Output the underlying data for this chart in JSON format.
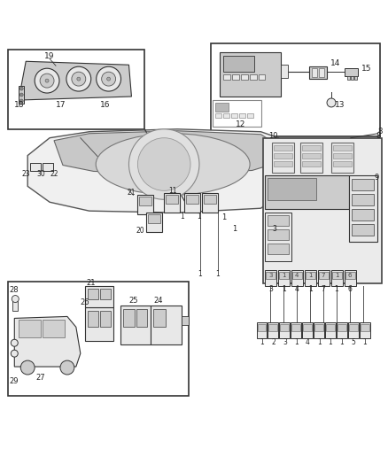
{
  "bg_color": "#ffffff",
  "fig_width": 4.38,
  "fig_height": 5.33,
  "dpi": 100,
  "line_color": "#333333",
  "fill_light": "#e8e8e8",
  "fill_mid": "#cccccc",
  "fill_dark": "#aaaaaa"
}
